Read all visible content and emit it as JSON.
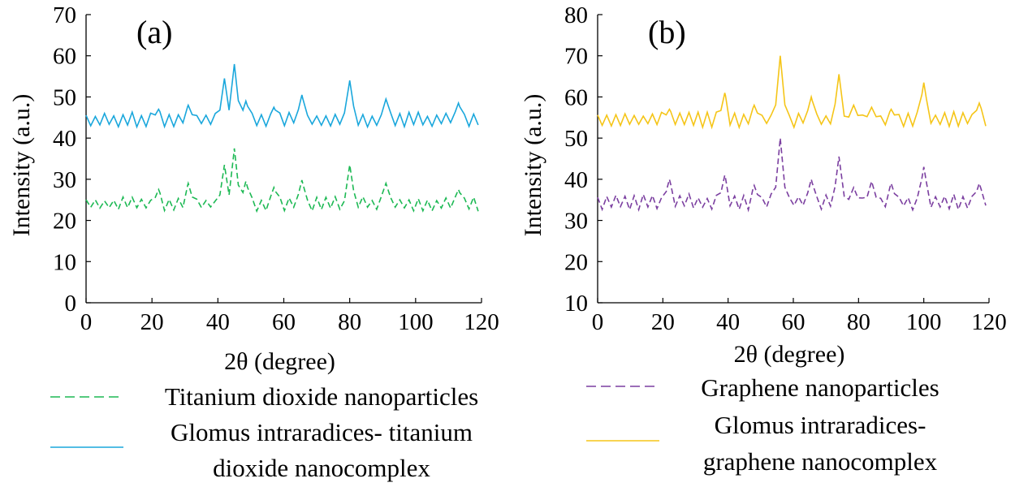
{
  "chart_data": [
    {
      "type": "line",
      "panel_label": "(a)",
      "xlabel": "2θ (degree)",
      "ylabel": "Intensity (a.u.)",
      "xlim": [
        0,
        120
      ],
      "ylim": [
        0,
        70
      ],
      "x_ticks": [
        0,
        20,
        40,
        60,
        80,
        100,
        120
      ],
      "y_ticks": [
        0,
        10,
        20,
        30,
        40,
        50,
        60,
        70
      ],
      "grid": false,
      "legend_position": "bottom",
      "series": [
        {
          "name": "Titanium dioxide nanoparticles",
          "legend_lines": [
            "Titanium dioxide nanoparticles"
          ],
          "color": "#1db954",
          "dash": "dashed",
          "baseline": 24,
          "noise": 1.6,
          "peaks": [
            [
              22,
              27.5
            ],
            [
              31,
              29
            ],
            [
              42,
              33.5
            ],
            [
              45,
              37.5
            ],
            [
              48.5,
              29.5
            ],
            [
              57,
              28
            ],
            [
              65.5,
              29.8
            ],
            [
              80,
              33.5
            ],
            [
              91,
              29
            ],
            [
              113,
              27.5
            ]
          ]
        },
        {
          "name": "Glomus intraradices- titanium dioxide nanocomplex",
          "legend_lines": [
            "Glomus intraradices- titanium",
            "dioxide nanocomplex"
          ],
          "color": "#1aa7dc",
          "dash": "solid",
          "baseline": 44.5,
          "noise": 1.6,
          "peaks": [
            [
              22,
              47
            ],
            [
              31,
              48
            ],
            [
              42,
              54.5
            ],
            [
              45,
              58
            ],
            [
              48.5,
              49
            ],
            [
              57,
              47.5
            ],
            [
              65.5,
              50.5
            ],
            [
              80,
              54
            ],
            [
              91,
              49.5
            ],
            [
              113,
              48.5
            ]
          ]
        }
      ]
    },
    {
      "type": "line",
      "panel_label": "(b)",
      "xlabel": "2θ (degree)",
      "ylabel": "Intensity (a.u.)",
      "xlim": [
        0,
        120
      ],
      "ylim": [
        10,
        80
      ],
      "x_ticks": [
        0,
        20,
        40,
        60,
        80,
        100,
        120
      ],
      "y_ticks": [
        10,
        20,
        30,
        40,
        50,
        60,
        70,
        80
      ],
      "grid": false,
      "legend_position": "bottom",
      "series": [
        {
          "name": "Graphene nanoparticles",
          "legend_lines": [
            "Graphene nanoparticles"
          ],
          "color": "#7b3fa0",
          "dash": "dashed",
          "baseline": 34.5,
          "noise": 1.7,
          "peaks": [
            [
              22,
              40
            ],
            [
              39,
              41
            ],
            [
              48,
              38.5
            ],
            [
              56,
              50
            ],
            [
              65.5,
              40
            ],
            [
              74,
              45.5
            ],
            [
              78.5,
              38
            ],
            [
              84,
              39.5
            ],
            [
              90,
              39
            ],
            [
              100,
              43
            ],
            [
              117,
              39
            ]
          ]
        },
        {
          "name": "Glomus intraradices-graphene nanocomplex",
          "legend_lines": [
            "Glomus intraradices-",
            "graphene nanocomplex"
          ],
          "color": "#f5c518",
          "dash": "solid",
          "baseline": 54.5,
          "noise": 1.7,
          "peaks": [
            [
              22,
              57
            ],
            [
              39,
              61
            ],
            [
              48,
              58
            ],
            [
              56,
              70
            ],
            [
              65.5,
              60
            ],
            [
              74,
              65.5
            ],
            [
              78.5,
              58
            ],
            [
              84,
              57.5
            ],
            [
              90,
              57
            ],
            [
              100,
              63.5
            ],
            [
              117,
              58.5
            ]
          ]
        }
      ]
    }
  ]
}
